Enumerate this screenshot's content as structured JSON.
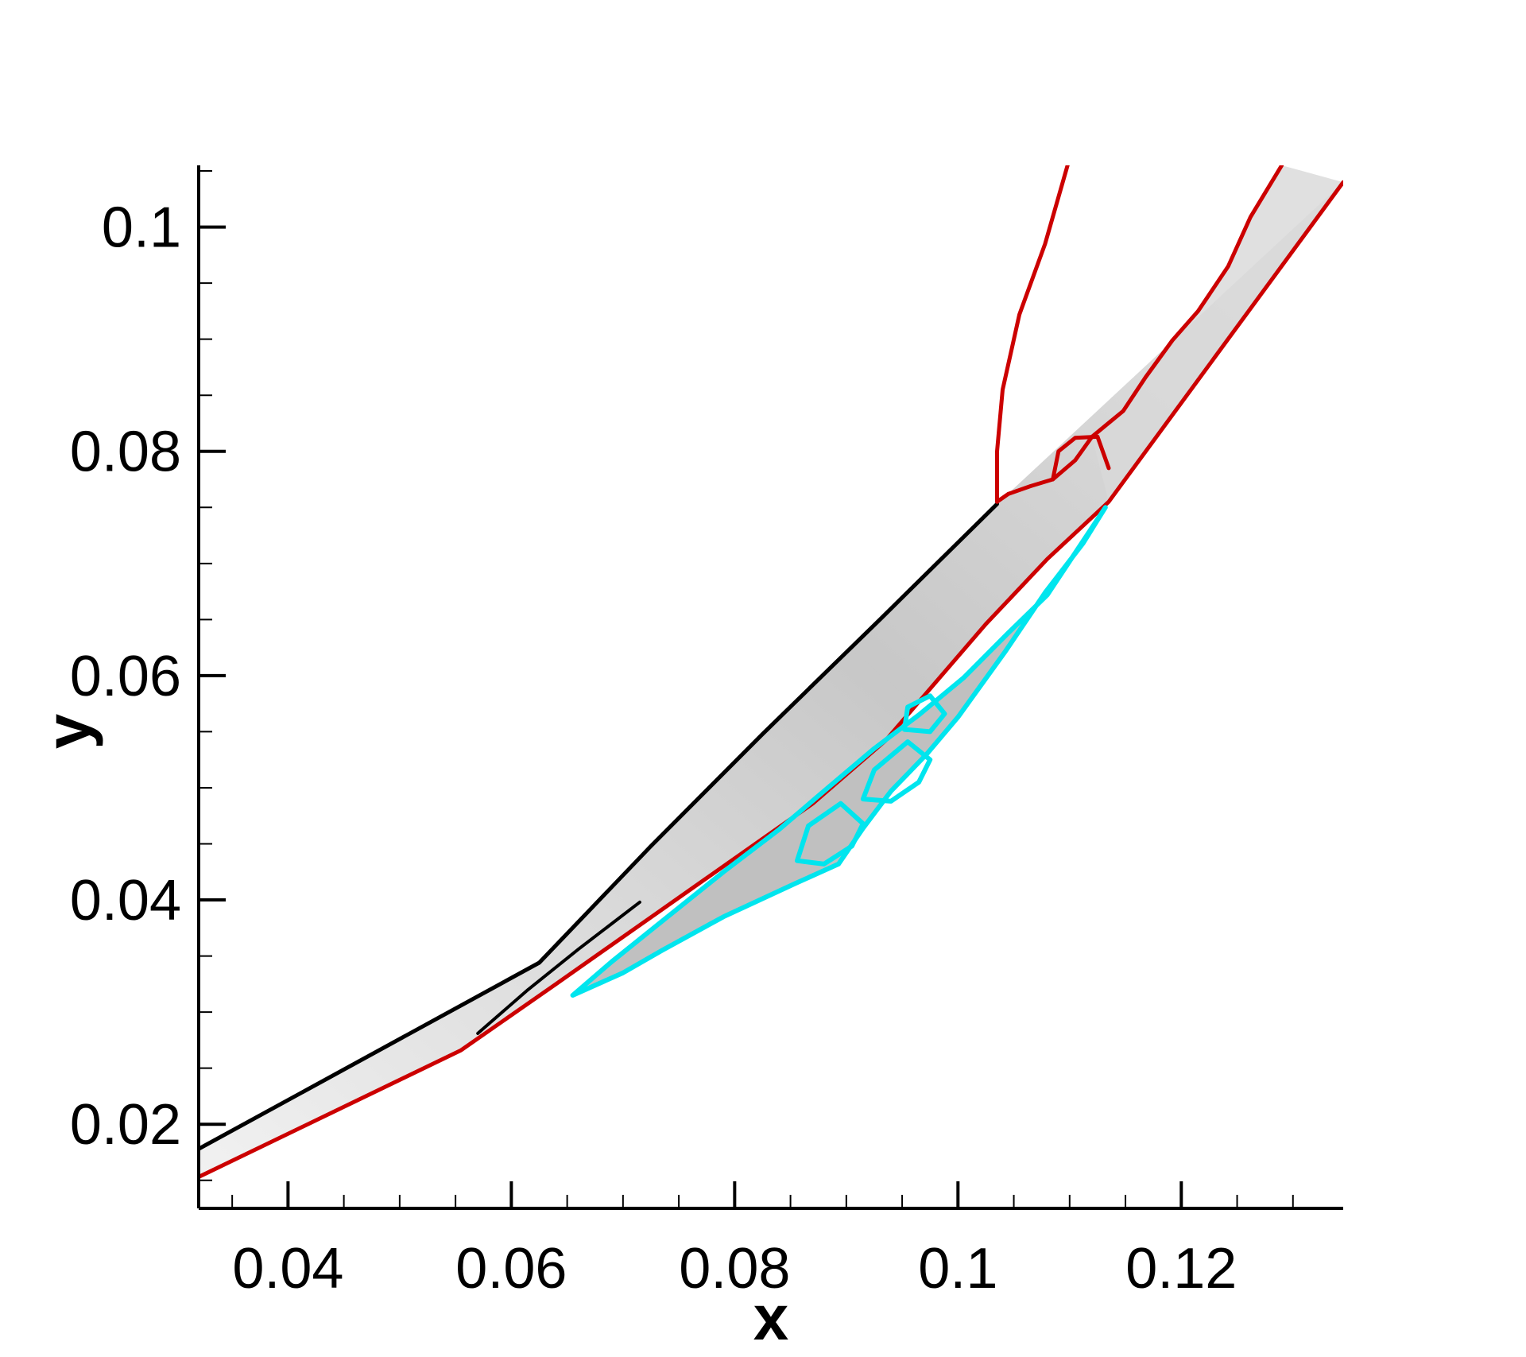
{
  "chart_data": {
    "type": "contour",
    "title": "",
    "xlabel": "x",
    "ylabel": "y",
    "xlim": [
      0.032,
      0.1345
    ],
    "ylim": [
      0.0125,
      0.1055
    ],
    "x_major_ticks": [
      0.04,
      0.06,
      0.08,
      0.1,
      0.12
    ],
    "x_tick_labels": [
      "0.04",
      "0.06",
      "0.08",
      "0.1",
      "0.12"
    ],
    "y_major_ticks": [
      0.02,
      0.04,
      0.06,
      0.08,
      0.1
    ],
    "y_tick_labels": [
      "0.02",
      "0.04",
      "0.06",
      "0.08",
      "0.1"
    ],
    "minor_tick_step": 0.005,
    "grid": false,
    "background_field": "grayscale shaded contours",
    "colors": {
      "red_contour": "#cc0000",
      "cyan_contour": "#00e5ee",
      "shock_lines": "#000000",
      "shade_dark": "#4a4a4a",
      "shade_light": "#d8d8d8"
    },
    "series": [
      {
        "role": "wall",
        "color": "#cc0000",
        "x": [
          0.032,
          0.0555,
          0.064,
          0.075,
          0.087,
          0.0935,
          0.1025,
          0.108,
          0.1135,
          0.1345
        ],
        "y": [
          0.0153,
          0.0266,
          0.0325,
          0.0402,
          0.0486,
          0.0542,
          0.0646,
          0.0704,
          0.0755,
          0.104
        ]
      },
      {
        "role": "shock",
        "color": "#000000",
        "x": [
          0.032,
          0.0625,
          0.0725,
          0.0825,
          0.093,
          0.1035
        ],
        "y": [
          0.0178,
          0.0344,
          0.0448,
          0.0548,
          0.065,
          0.0753
        ]
      },
      {
        "role": "transmitted-shock",
        "color": "#000000",
        "x": [
          0.057,
          0.0615,
          0.066,
          0.0715
        ],
        "y": [
          0.0281,
          0.032,
          0.0356,
          0.0398
        ]
      },
      {
        "role": "red-left-branch",
        "color": "#cc0000",
        "x": [
          0.1035,
          0.1035,
          0.104,
          0.1055,
          0.1078,
          0.1099
        ],
        "y": [
          0.0755,
          0.08,
          0.0855,
          0.0922,
          0.0985,
          0.1058
        ]
      },
      {
        "role": "red-lower-branch",
        "color": "#cc0000",
        "x": [
          0.1035,
          0.1045,
          0.1065,
          0.1085,
          0.1105,
          0.112
        ],
        "y": [
          0.0755,
          0.0762,
          0.0769,
          0.0775,
          0.0792,
          0.0813
        ]
      },
      {
        "role": "red-upper-branch",
        "color": "#cc0000",
        "x": [
          0.112,
          0.1148,
          0.1168,
          0.1192,
          0.1215,
          0.1242,
          0.1262,
          0.129
        ],
        "y": [
          0.0813,
          0.0836,
          0.0866,
          0.0899,
          0.0925,
          0.0965,
          0.1009,
          0.1055
        ]
      },
      {
        "role": "red-inner-branch",
        "color": "#cc0000",
        "x": [
          0.1085,
          0.109,
          0.1105,
          0.1125,
          0.1135
        ],
        "y": [
          0.0775,
          0.08,
          0.0812,
          0.0813,
          0.0785
        ]
      },
      {
        "role": "cyan-separation-outer",
        "color": "#00e5ee",
        "x": [
          0.0655,
          0.069,
          0.074,
          0.079,
          0.084,
          0.088,
          0.0925,
          0.0965,
          0.1005,
          0.1045,
          0.108,
          0.1132,
          0.1112,
          0.1078,
          0.1042,
          0.1,
          0.0972,
          0.094,
          0.0915,
          0.0893,
          0.0855,
          0.079,
          0.0735,
          0.07,
          0.0655
        ],
        "y": [
          0.0315,
          0.0345,
          0.0385,
          0.0425,
          0.0463,
          0.0497,
          0.0535,
          0.0565,
          0.0598,
          0.0638,
          0.0672,
          0.075,
          0.0718,
          0.0674,
          0.0621,
          0.0563,
          0.053,
          0.0497,
          0.0464,
          0.0432,
          0.0415,
          0.0385,
          0.0355,
          0.0335,
          0.0315
        ]
      },
      {
        "role": "cyan-vortex-1",
        "color": "#00e5ee",
        "x": [
          0.0856,
          0.088,
          0.0905,
          0.0915,
          0.0895,
          0.0866,
          0.0856
        ],
        "y": [
          0.0435,
          0.0432,
          0.0448,
          0.0468,
          0.0486,
          0.0466,
          0.0435
        ]
      },
      {
        "role": "cyan-vortex-2",
        "color": "#00e5ee",
        "x": [
          0.0915,
          0.094,
          0.0965,
          0.0975,
          0.0955,
          0.0925,
          0.0915
        ],
        "y": [
          0.049,
          0.0488,
          0.0505,
          0.0525,
          0.0541,
          0.0516,
          0.049
        ]
      },
      {
        "role": "cyan-vortex-3",
        "color": "#00e5ee",
        "x": [
          0.0952,
          0.0975,
          0.0988,
          0.0975,
          0.0955,
          0.0952
        ],
        "y": [
          0.0552,
          0.055,
          0.0566,
          0.0582,
          0.0572,
          0.0552
        ]
      }
    ]
  }
}
